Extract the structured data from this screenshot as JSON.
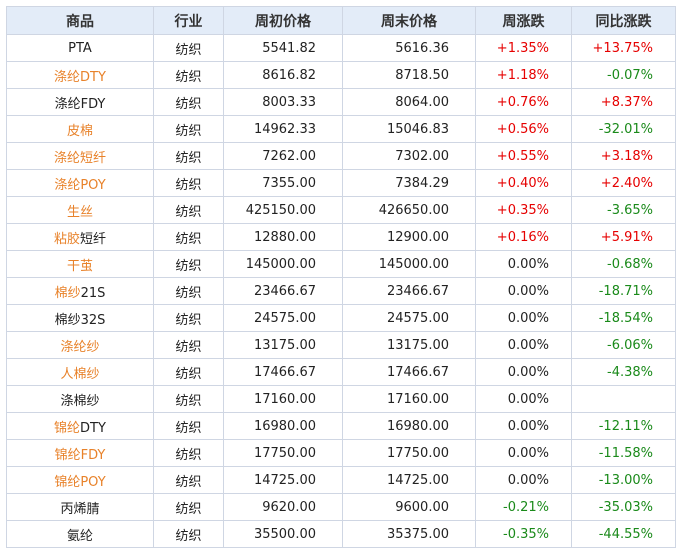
{
  "headers": [
    "商品",
    "行业",
    "周初价格",
    "周末价格",
    "周涨跌",
    "同比涨跌"
  ],
  "rows": [
    {
      "name": "PTA",
      "link": false,
      "industry": "纺织",
      "start": "5541.82",
      "end": "5616.36",
      "week": "+1.35%",
      "yoy": "+13.75%"
    },
    {
      "name": "涤纶DTY",
      "link": true,
      "industry": "纺织",
      "start": "8616.82",
      "end": "8718.50",
      "week": "+1.18%",
      "yoy": "-0.07%"
    },
    {
      "name": "涤纶FDY",
      "link": false,
      "industry": "纺织",
      "start": "8003.33",
      "end": "8064.00",
      "week": "+0.76%",
      "yoy": "+8.37%"
    },
    {
      "name": "皮棉",
      "link": true,
      "industry": "纺织",
      "start": "14962.33",
      "end": "15046.83",
      "week": "+0.56%",
      "yoy": "-32.01%"
    },
    {
      "name": "涤纶短纤",
      "link": true,
      "industry": "纺织",
      "start": "7262.00",
      "end": "7302.00",
      "week": "+0.55%",
      "yoy": "+3.18%"
    },
    {
      "name": "涤纶POY",
      "link": true,
      "industry": "纺织",
      "start": "7355.00",
      "end": "7384.29",
      "week": "+0.40%",
      "yoy": "+2.40%"
    },
    {
      "name": "生丝",
      "link": true,
      "industry": "纺织",
      "start": "425150.00",
      "end": "426650.00",
      "week": "+0.35%",
      "yoy": "-3.65%"
    },
    {
      "name": "粘胶短纤",
      "link": "partial",
      "name_a": "粘胶",
      "name_b": "短纤",
      "industry": "纺织",
      "start": "12880.00",
      "end": "12900.00",
      "week": "+0.16%",
      "yoy": "+5.91%"
    },
    {
      "name": "干茧",
      "link": true,
      "industry": "纺织",
      "start": "145000.00",
      "end": "145000.00",
      "week": "0.00%",
      "yoy": "-0.68%"
    },
    {
      "name": "棉纱21S",
      "link": "partial",
      "name_a": "棉纱",
      "name_b": "21S",
      "industry": "纺织",
      "start": "23466.67",
      "end": "23466.67",
      "week": "0.00%",
      "yoy": "-18.71%"
    },
    {
      "name": "棉纱32S",
      "link": false,
      "industry": "纺织",
      "start": "24575.00",
      "end": "24575.00",
      "week": "0.00%",
      "yoy": "-18.54%"
    },
    {
      "name": "涤纶纱",
      "link": true,
      "industry": "纺织",
      "start": "13175.00",
      "end": "13175.00",
      "week": "0.00%",
      "yoy": "-6.06%"
    },
    {
      "name": "人棉纱",
      "link": true,
      "industry": "纺织",
      "start": "17466.67",
      "end": "17466.67",
      "week": "0.00%",
      "yoy": "-4.38%"
    },
    {
      "name": "涤棉纱",
      "link": false,
      "industry": "纺织",
      "start": "17160.00",
      "end": "17160.00",
      "week": "0.00%",
      "yoy": ""
    },
    {
      "name": "锦纶DTY",
      "link": "partial",
      "name_a": "锦纶",
      "name_b": "DTY",
      "industry": "纺织",
      "start": "16980.00",
      "end": "16980.00",
      "week": "0.00%",
      "yoy": "-12.11%"
    },
    {
      "name": "锦纶FDY",
      "link": true,
      "industry": "纺织",
      "start": "17750.00",
      "end": "17750.00",
      "week": "0.00%",
      "yoy": "-11.58%"
    },
    {
      "name": "锦纶POY",
      "link": true,
      "industry": "纺织",
      "start": "14725.00",
      "end": "14725.00",
      "week": "0.00%",
      "yoy": "-13.00%"
    },
    {
      "name": "丙烯腈",
      "link": false,
      "industry": "纺织",
      "start": "9620.00",
      "end": "9600.00",
      "week": "-0.21%",
      "yoy": "-35.03%"
    },
    {
      "name": "氨纶",
      "link": false,
      "industry": "纺织",
      "start": "35500.00",
      "end": "35375.00",
      "week": "-0.35%",
      "yoy": "-44.55%"
    }
  ],
  "colors": {
    "header_bg": "#e3ecf8",
    "border": "#cfd6e3",
    "link": "#e8822a",
    "up": "#e60000",
    "down": "#1a8a1a"
  }
}
